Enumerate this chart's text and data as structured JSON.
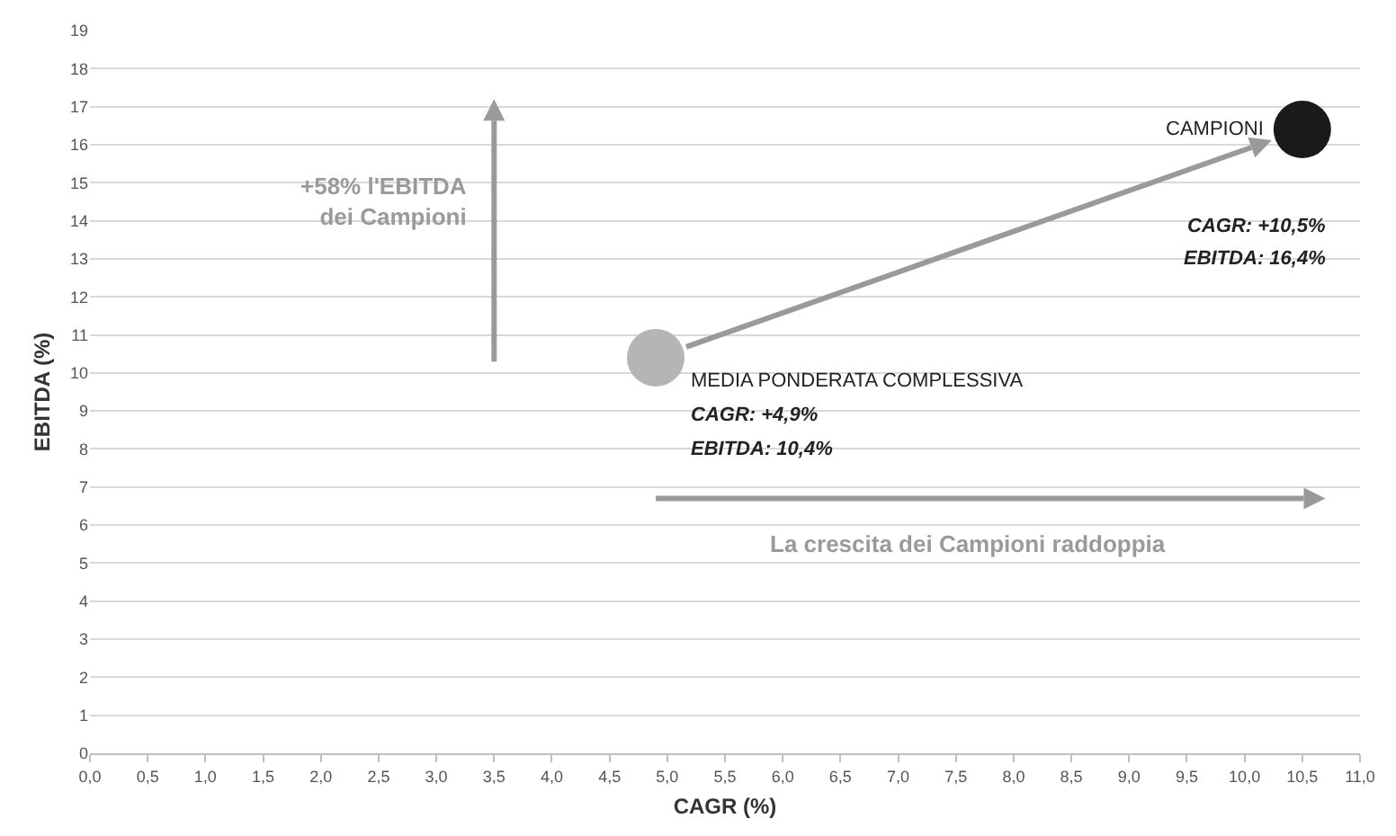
{
  "chart_data": {
    "type": "scatter",
    "xlabel": "CAGR (%)",
    "ylabel": "EBITDA (%)",
    "x": [
      4.9,
      10.5
    ],
    "series": [
      {
        "values": [
          10.4,
          16.4
        ],
        "colors": [
          "#b5b5b5",
          "#1a1a1a"
        ]
      }
    ],
    "marker": "circle",
    "grid": "y",
    "xlim": [
      0,
      11
    ],
    "ylim": [
      0,
      19
    ],
    "xticks": [
      {
        "value": 0,
        "label": "0,0"
      },
      {
        "value": 0.5,
        "label": "0,5"
      },
      {
        "value": 1,
        "label": "1,0"
      },
      {
        "value": 1.5,
        "label": "1,5"
      },
      {
        "value": 2,
        "label": "2,0"
      },
      {
        "value": 2.5,
        "label": "2,5"
      },
      {
        "value": 3,
        "label": "3,0"
      },
      {
        "value": 3.5,
        "label": "3,5"
      },
      {
        "value": 4,
        "label": "4,0"
      },
      {
        "value": 4.5,
        "label": "4,5"
      },
      {
        "value": 5,
        "label": "5,0"
      },
      {
        "value": 5.5,
        "label": "5,5"
      },
      {
        "value": 6,
        "label": "6,0"
      },
      {
        "value": 6.5,
        "label": "6,5"
      },
      {
        "value": 7,
        "label": "7,0"
      },
      {
        "value": 7.5,
        "label": "7,5"
      },
      {
        "value": 8,
        "label": "8,0"
      },
      {
        "value": 8.5,
        "label": "8,5"
      },
      {
        "value": 9,
        "label": "9,0"
      },
      {
        "value": 9.5,
        "label": "9,5"
      },
      {
        "value": 10,
        "label": "10,0"
      },
      {
        "value": 10.5,
        "label": "10,5"
      },
      {
        "value": 11,
        "label": "11,0"
      }
    ],
    "yticks": [
      0,
      1,
      2,
      3,
      4,
      5,
      6,
      7,
      8,
      9,
      10,
      11,
      12,
      13,
      14,
      15,
      16,
      17,
      18,
      19
    ],
    "annotations": [
      "+58% l'EBITDA dei Campioni",
      "La crescita dei Campioni raddoppia",
      "CAMPIONI",
      "CAGR: +10,5%",
      "EBITDA: 16,4%",
      "MEDIA PONDERATA COMPLESSIVA",
      "CAGR: +4,9%",
      "EBITDA: 10,4%"
    ]
  }
}
